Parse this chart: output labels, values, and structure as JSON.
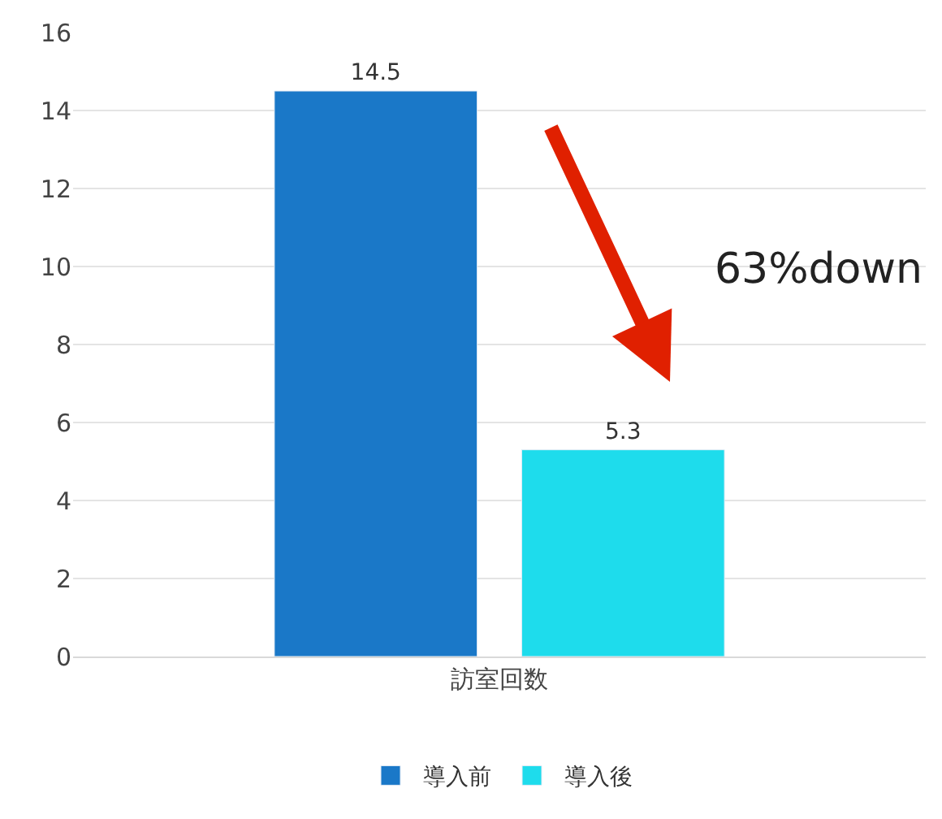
{
  "chart_data": {
    "type": "bar",
    "categories": [
      "訪室回数"
    ],
    "series": [
      {
        "name": "導入前",
        "color": "#1a78c8",
        "values": [
          14.5
        ]
      },
      {
        "name": "導入後",
        "color": "#1edcec",
        "values": [
          5.3
        ]
      }
    ],
    "ylim": [
      0,
      16
    ],
    "yticks": [
      0,
      2,
      4,
      6,
      8,
      10,
      12,
      14,
      16
    ],
    "grid": "y",
    "legend": "bottom",
    "data_labels": true,
    "annotations": [
      "63%down"
    ]
  }
}
